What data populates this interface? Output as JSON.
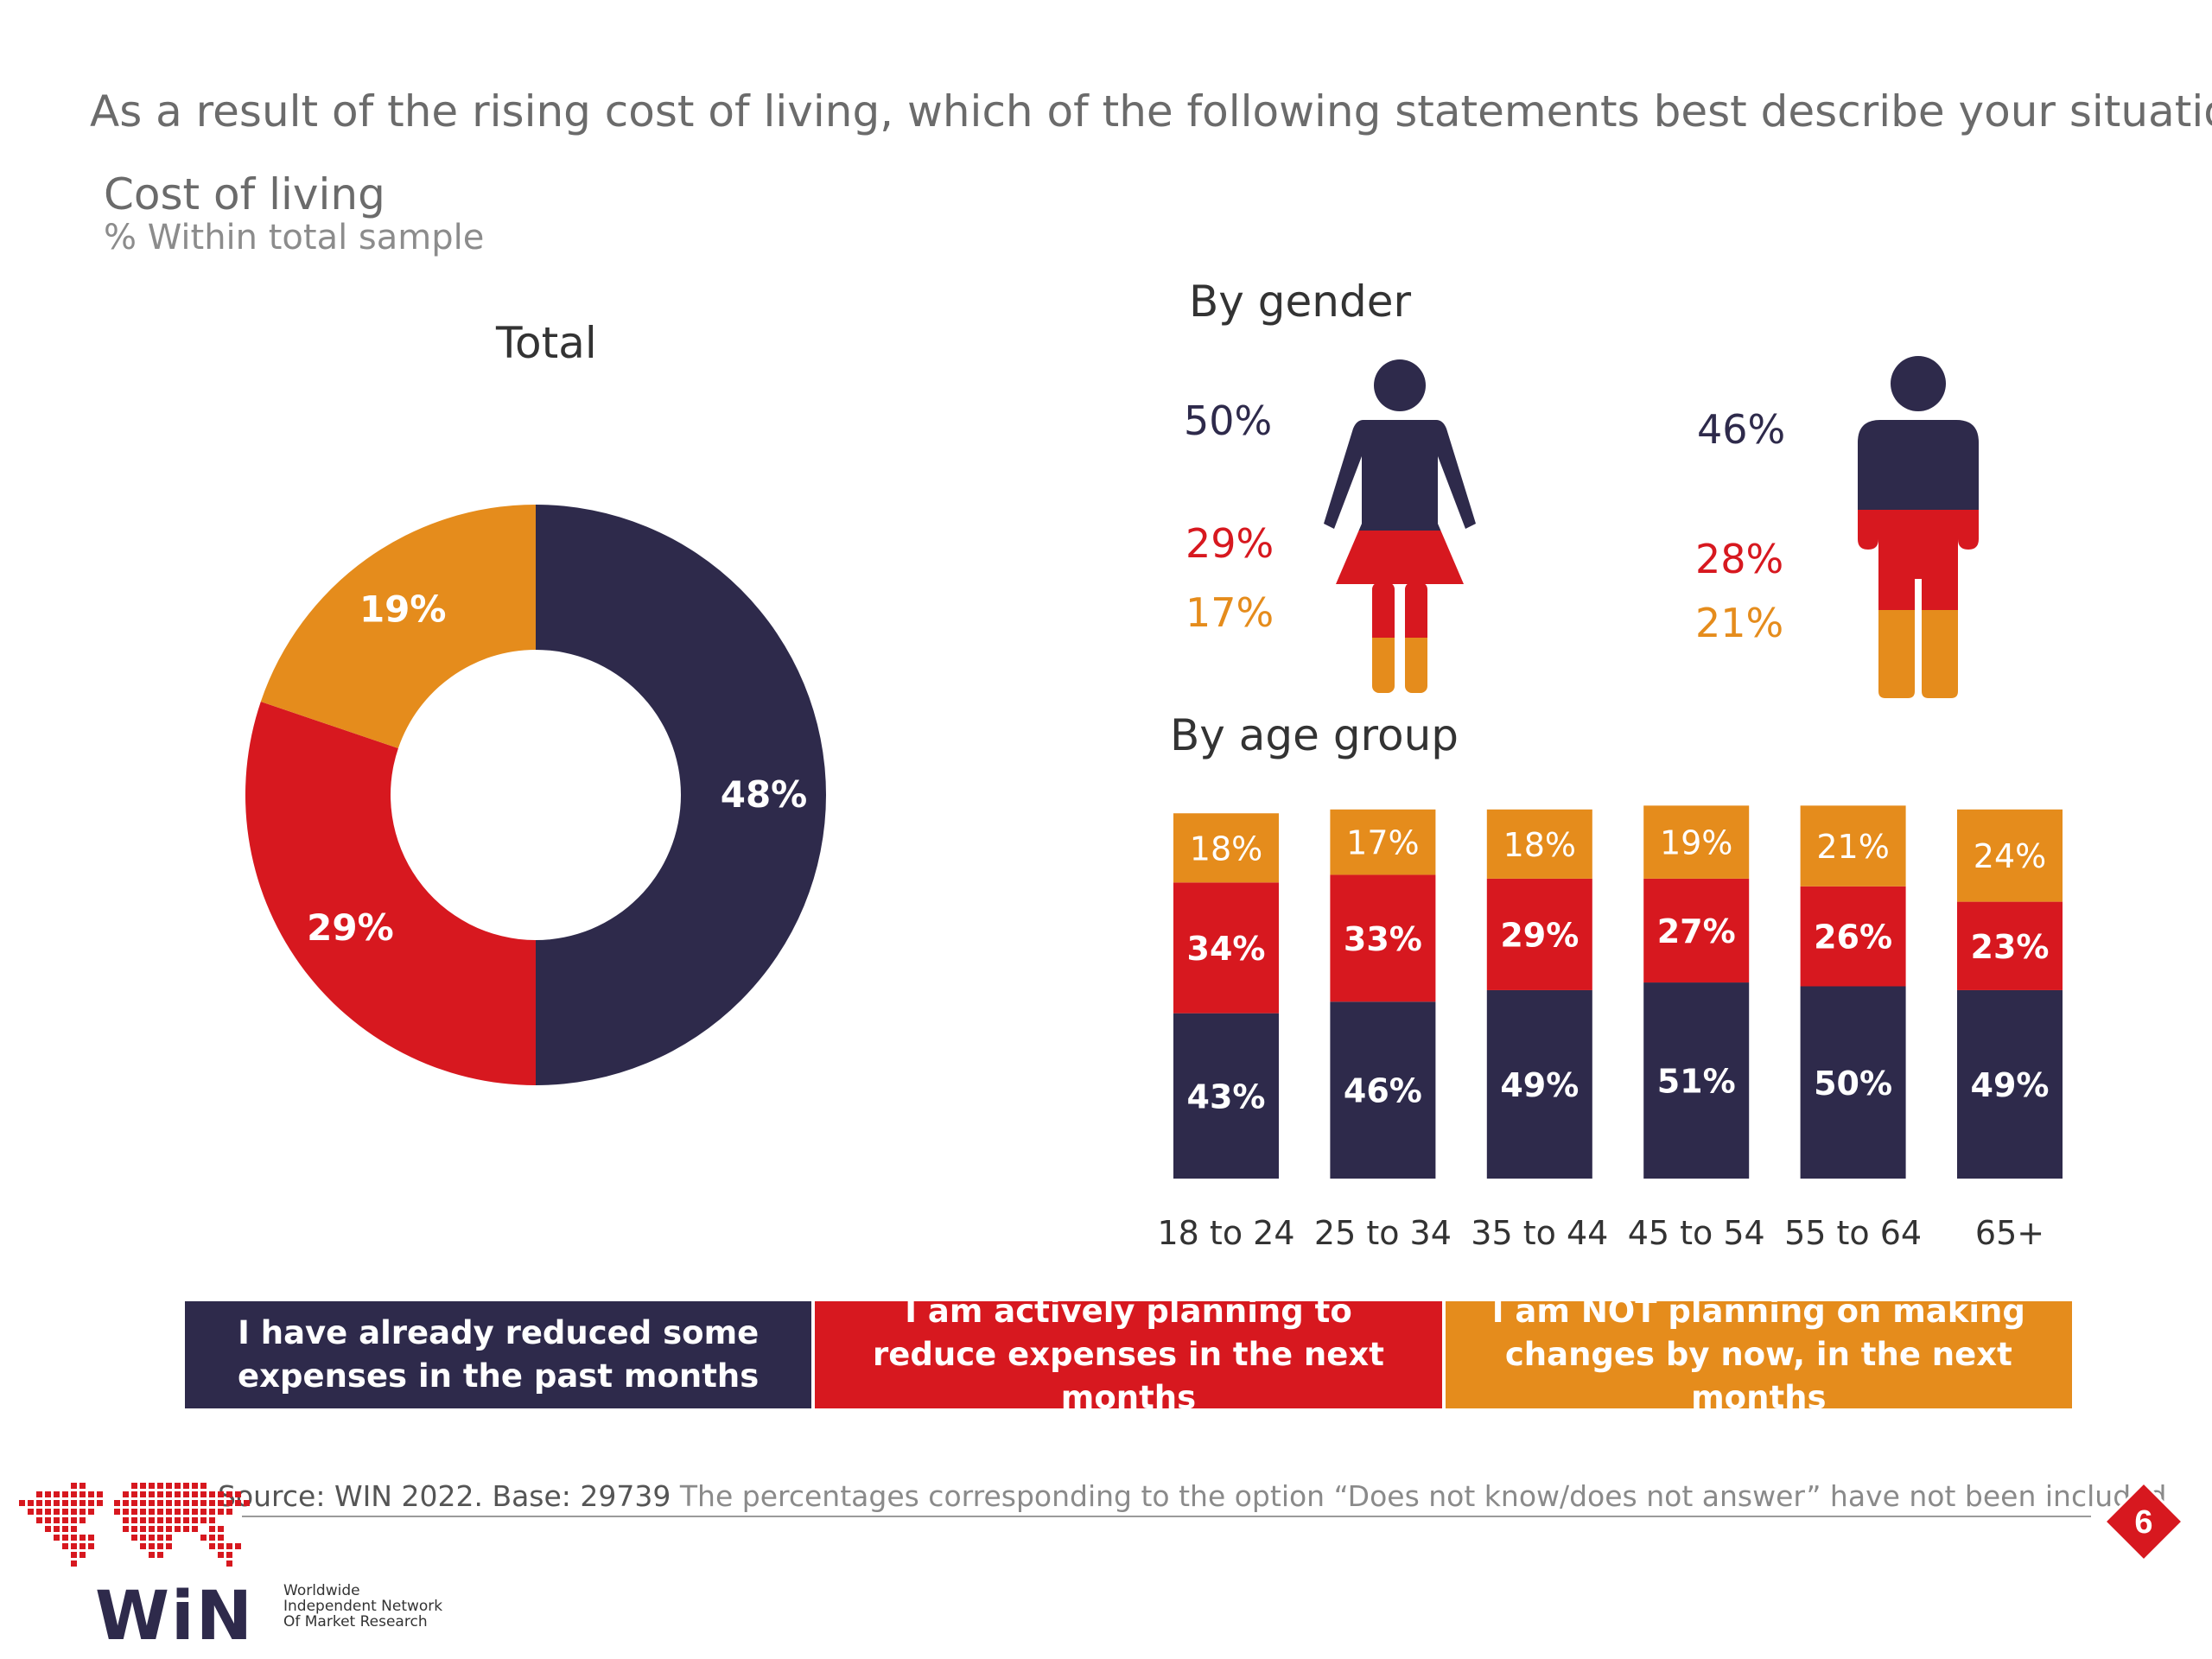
{
  "question": "As a result of the rising cost of living, which of the following statements best describe your situation?",
  "subtitle": "Cost of living",
  "subsubtitle": "% Within total sample",
  "colors": {
    "reduced": "#2e2a4b",
    "planning": "#d7181f",
    "not_planning": "#e58c1c"
  },
  "total": {
    "title": "Total",
    "labels": [
      "48%",
      "29%",
      "19%"
    ]
  },
  "gender": {
    "title": "By gender",
    "female": {
      "icon": "woman-icon",
      "reduced": "50%",
      "planning": "29%",
      "not_planning": "17%"
    },
    "male": {
      "icon": "man-icon",
      "reduced": "46%",
      "planning": "28%",
      "not_planning": "21%"
    }
  },
  "age": {
    "title": "By age group"
  },
  "legend": [
    "I have already reduced some expenses in the past months",
    "I am actively planning to reduce expenses in the next months",
    "I am NOT planning on making changes by now, in the next months"
  ],
  "source": {
    "lead": "Source: WIN 2022. Base: 29739",
    "note": "The percentages corresponding to the option “Does not know/does not answer” have not been included"
  },
  "page_number": "6",
  "logo": {
    "name": "WiN",
    "tagline": [
      "Worldwide",
      "Independent Network",
      "Of Market Research"
    ]
  },
  "chart_data": [
    {
      "type": "pie",
      "title": "Total",
      "categories": [
        "I have already reduced some expenses in the past months",
        "I am actively planning to reduce expenses in the next months",
        "I am NOT planning on making changes by now, in the next months"
      ],
      "values": [
        48,
        29,
        19
      ]
    },
    {
      "type": "bar",
      "title": "By gender",
      "categories": [
        "Female",
        "Male"
      ],
      "series": [
        {
          "name": "I have already reduced some expenses in the past months",
          "values": [
            50,
            46
          ]
        },
        {
          "name": "I am actively planning to reduce expenses in the next months",
          "values": [
            29,
            28
          ]
        },
        {
          "name": "I am NOT planning on making changes by now, in the next months",
          "values": [
            17,
            21
          ]
        }
      ]
    },
    {
      "type": "bar",
      "stacked": true,
      "title": "By age group",
      "categories": [
        "18 to 24",
        "25 to 34",
        "35 to 44",
        "45 to 54",
        "55 to 64",
        "65+"
      ],
      "series": [
        {
          "name": "I have already reduced some expenses in the past months",
          "values": [
            43,
            46,
            49,
            51,
            50,
            49
          ]
        },
        {
          "name": "I am actively planning to reduce expenses in the next months",
          "values": [
            34,
            33,
            29,
            27,
            26,
            23
          ]
        },
        {
          "name": "I am NOT planning on making changes by now, in the next months",
          "values": [
            18,
            17,
            18,
            19,
            21,
            24
          ]
        }
      ]
    }
  ]
}
